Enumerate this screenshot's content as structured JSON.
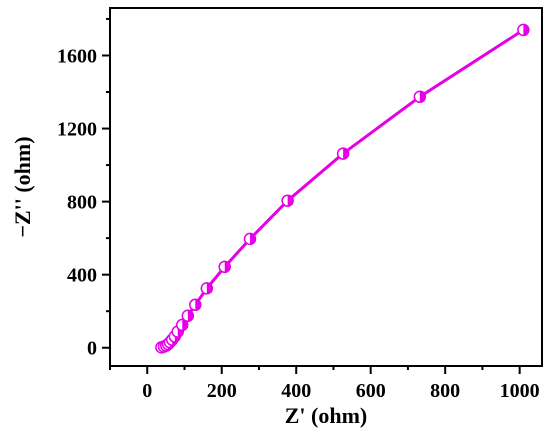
{
  "chart_data": {
    "type": "scatter",
    "xlabel": "Z' (ohm)",
    "ylabel": "−Z'' (ohm)",
    "xlim": [
      -100,
      1060
    ],
    "ylim": [
      -100,
      1860
    ],
    "xticks": [
      0,
      200,
      400,
      600,
      800,
      1000
    ],
    "yticks": [
      0,
      400,
      800,
      1200,
      1600
    ],
    "xtick_labels": [
      "0",
      "200",
      "400",
      "600",
      "800",
      "1000"
    ],
    "ytick_labels": [
      "0",
      "400",
      "800",
      "1200",
      "1600"
    ],
    "grid": false,
    "legend": "none",
    "series": [
      {
        "color": "#e600e6",
        "marker": "half-filled-circle",
        "line": true,
        "points": [
          {
            "x": 38,
            "y": 2
          },
          {
            "x": 45,
            "y": 6
          },
          {
            "x": 51,
            "y": 12
          },
          {
            "x": 56,
            "y": 20
          },
          {
            "x": 61,
            "y": 30
          },
          {
            "x": 67,
            "y": 44
          },
          {
            "x": 74,
            "y": 62
          },
          {
            "x": 82,
            "y": 88
          },
          {
            "x": 94,
            "y": 125
          },
          {
            "x": 109,
            "y": 175
          },
          {
            "x": 129,
            "y": 235
          },
          {
            "x": 160,
            "y": 325
          },
          {
            "x": 208,
            "y": 443
          },
          {
            "x": 276,
            "y": 596
          },
          {
            "x": 377,
            "y": 805
          },
          {
            "x": 526,
            "y": 1063
          },
          {
            "x": 732,
            "y": 1374
          },
          {
            "x": 1010,
            "y": 1740
          }
        ]
      }
    ]
  }
}
